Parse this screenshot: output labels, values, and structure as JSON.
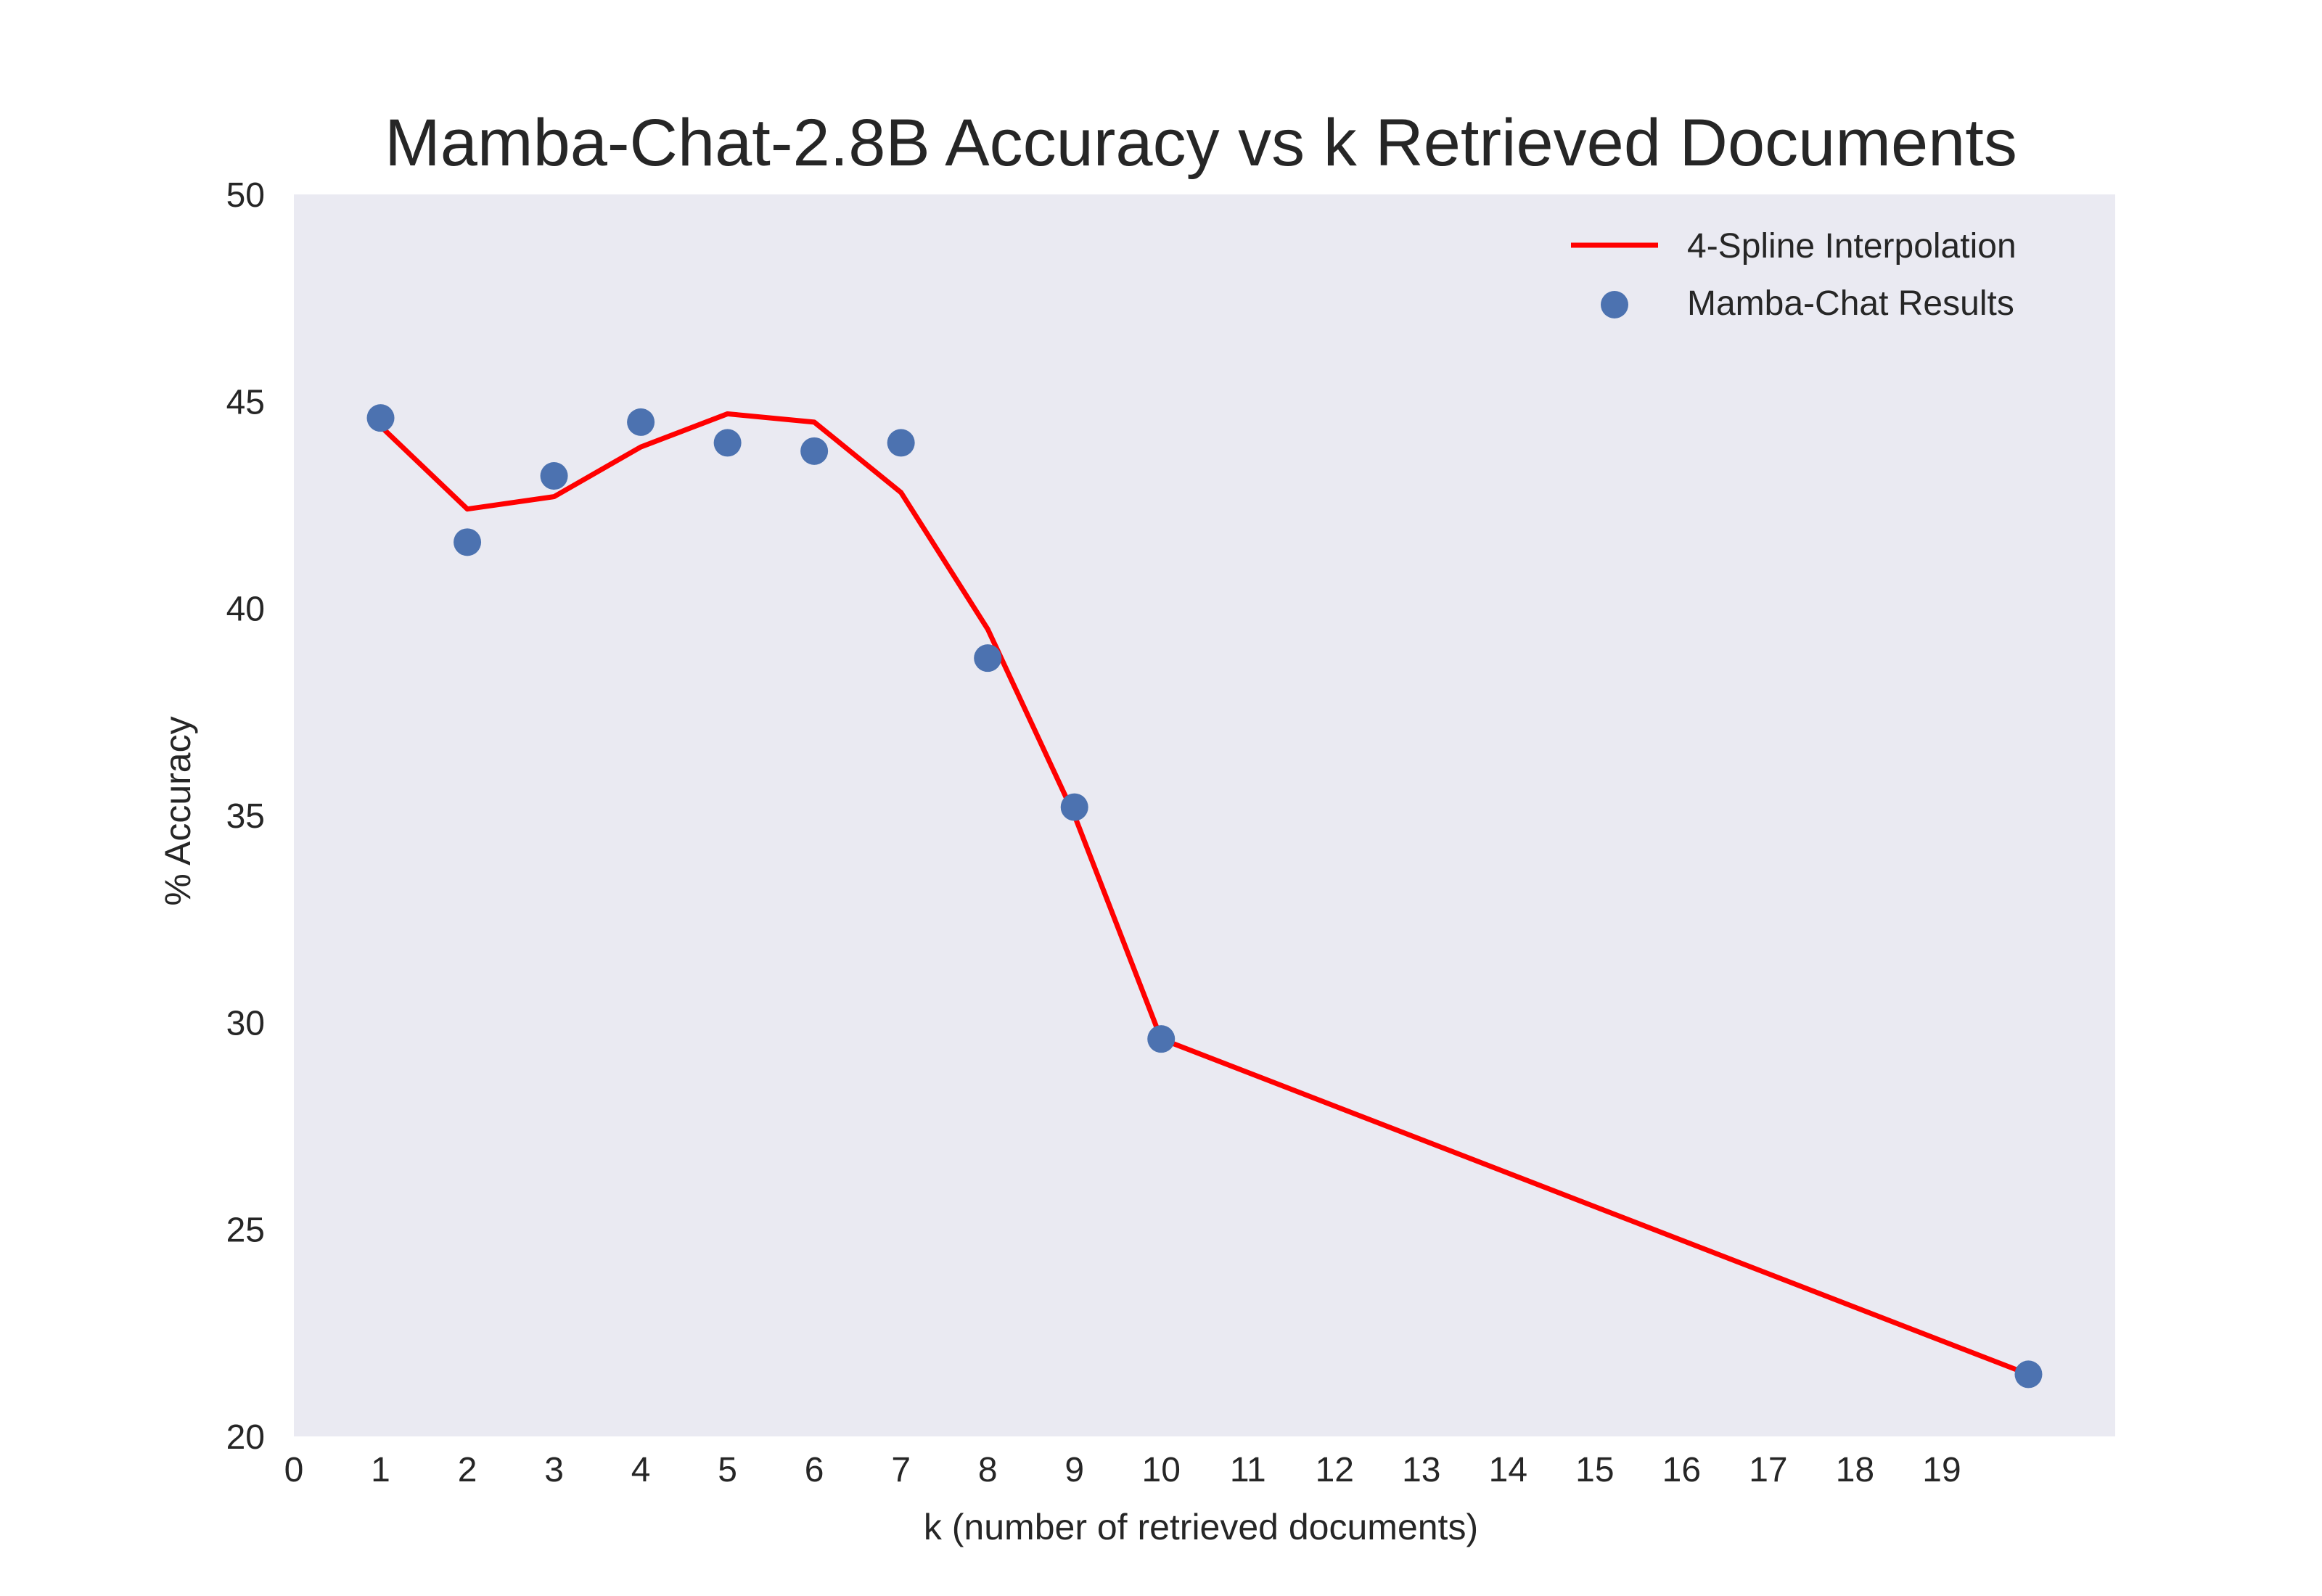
{
  "chart_data": {
    "type": "line",
    "title": "Mamba-Chat-2.8B Accuracy vs k Retrieved Documents",
    "xlabel": "k (number of retrieved documents)",
    "ylabel": "% Accuracy",
    "xlim": [
      0,
      21
    ],
    "ylim": [
      20,
      50
    ],
    "xticks": [
      0,
      1,
      2,
      3,
      4,
      5,
      6,
      7,
      8,
      9,
      10,
      11,
      12,
      13,
      14,
      15,
      16,
      17,
      18,
      19
    ],
    "yticks": [
      20,
      25,
      30,
      35,
      40,
      45,
      50
    ],
    "grid": false,
    "legend_position": "top-right",
    "colors": {
      "plot_background": "#EAEAF2",
      "line": "#FF0000",
      "points": "#4C72B0"
    },
    "series": [
      {
        "name": "4-Spline Interpolation",
        "kind": "line",
        "x": [
          1,
          2,
          3,
          4,
          5,
          6,
          7,
          8,
          9,
          10,
          20
        ],
        "y": [
          44.4,
          42.4,
          42.7,
          43.9,
          44.7,
          44.5,
          42.8,
          39.5,
          35.0,
          29.6,
          21.5
        ]
      },
      {
        "name": "Mamba-Chat Results",
        "kind": "scatter",
        "x": [
          1,
          2,
          3,
          4,
          5,
          6,
          7,
          8,
          9,
          10,
          20
        ],
        "y": [
          44.6,
          41.6,
          43.2,
          44.5,
          44.0,
          43.8,
          44.0,
          38.8,
          35.2,
          29.6,
          21.5
        ]
      }
    ]
  }
}
